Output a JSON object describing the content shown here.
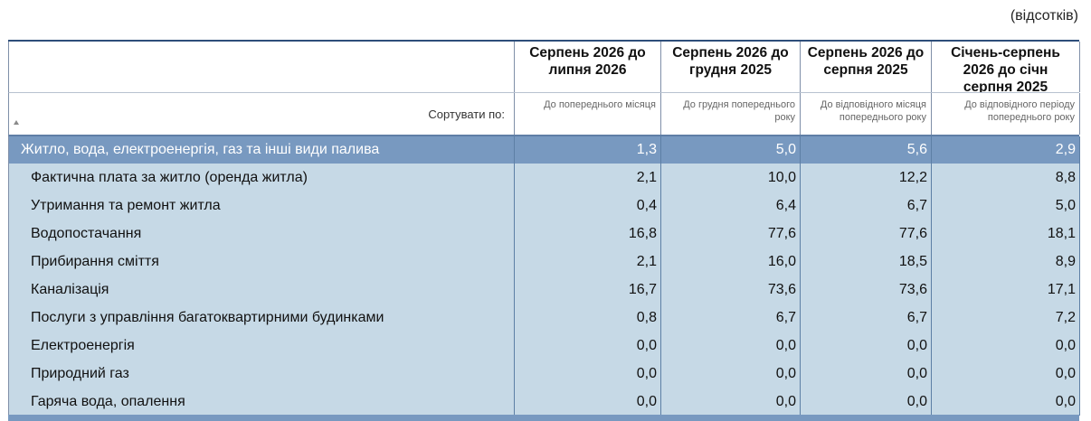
{
  "unit_label": "(відсотків)",
  "headers": [
    {
      "line1": "Серпень 2026 до",
      "line2": "липня 2026",
      "line3": ""
    },
    {
      "line1": "Серпень 2026 до",
      "line2": "грудня 2025",
      "line3": ""
    },
    {
      "line1": "Серпень 2026 до",
      "line2": "серпня 2025",
      "line3": ""
    },
    {
      "line1": "Січень-серпень",
      "line2": "2026 до січн",
      "line3": "серпня 2025"
    }
  ],
  "sort_label": "Сортувати по:",
  "subheaders": [
    {
      "line1": "До попереднього місяця",
      "line2": ""
    },
    {
      "line1": "До грудня попереднього",
      "line2": "року"
    },
    {
      "line1": "До відповідного місяця",
      "line2": "попереднього року"
    },
    {
      "line1": "До відповідного періоду",
      "line2": "попереднього року"
    }
  ],
  "rows": [
    {
      "label": "Житло, вода, електроенергія, газ та інші види палива",
      "values": [
        "1,3",
        "5,0",
        "5,6",
        "2,9"
      ],
      "highlight": true
    },
    {
      "label": "Фактична плата за житло (оренда житла)",
      "values": [
        "2,1",
        "10,0",
        "12,2",
        "8,8"
      ]
    },
    {
      "label": "Утримання та ремонт житла",
      "values": [
        "0,4",
        "6,4",
        "6,7",
        "5,0"
      ]
    },
    {
      "label": "Водопостачання",
      "values": [
        "16,8",
        "77,6",
        "77,6",
        "18,1"
      ]
    },
    {
      "label": "Прибирання сміття",
      "values": [
        "2,1",
        "16,0",
        "18,5",
        "8,9"
      ]
    },
    {
      "label": "Каналізація",
      "values": [
        "16,7",
        "73,6",
        "73,6",
        "17,1"
      ]
    },
    {
      "label": "Послуги з управління багатоквартирними будинками",
      "values": [
        "0,8",
        "6,7",
        "6,7",
        "7,2"
      ]
    },
    {
      "label": "Електроенергія",
      "values": [
        "0,0",
        "0,0",
        "0,0",
        "0,0"
      ]
    },
    {
      "label": "Природний газ",
      "values": [
        "0,0",
        "0,0",
        "0,0",
        "0,0"
      ]
    },
    {
      "label": "Гаряча вода, опалення",
      "values": [
        "0,0",
        "0,0",
        "0,0",
        "0,0"
      ]
    }
  ],
  "colors": {
    "header_border": "#2e4e7a",
    "highlight_row": "#7899c0",
    "row_bg": "#c6d9e6"
  },
  "icons": [
    "sort-ascending-icon"
  ]
}
